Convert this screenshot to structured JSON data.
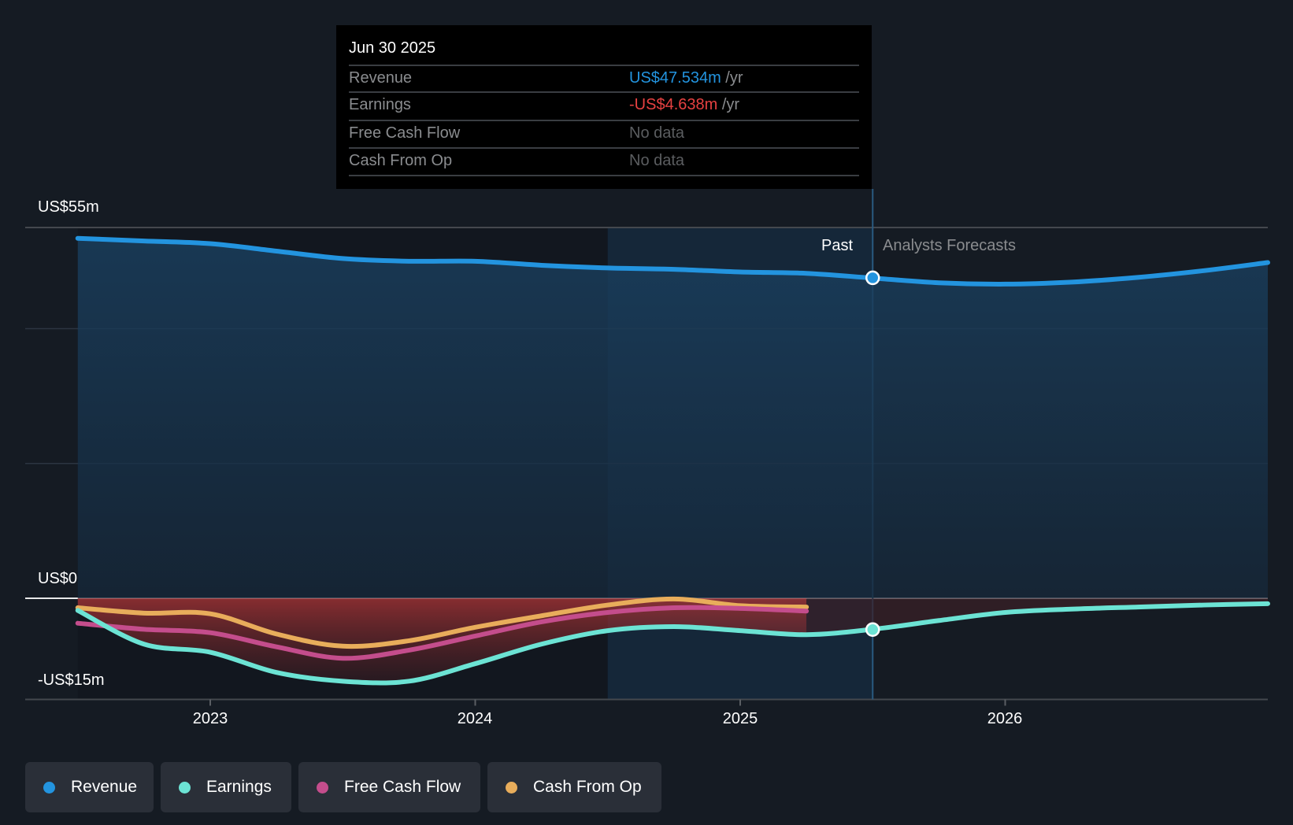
{
  "tooltip": {
    "date": "Jun 30 2025",
    "rows": [
      {
        "label": "Revenue",
        "value": "US$47.534m",
        "unit": " /yr",
        "color": "#2394df"
      },
      {
        "label": "Earnings",
        "value": "-US$4.638m",
        "unit": " /yr",
        "color": "#e64141"
      },
      {
        "label": "Free Cash Flow",
        "value": "No data",
        "unit": "",
        "color": "#5b5d60"
      },
      {
        "label": "Cash From Op",
        "value": "No data",
        "unit": "",
        "color": "#5b5d60"
      }
    ]
  },
  "labels": {
    "past": "Past",
    "forecast": "Analysts Forecasts"
  },
  "legend": [
    {
      "label": "Revenue",
      "color": "#2394df"
    },
    {
      "label": "Earnings",
      "color": "#6ce3d4"
    },
    {
      "label": "Free Cash Flow",
      "color": "#c44d8c"
    },
    {
      "label": "Cash From Op",
      "color": "#e8ad5b"
    }
  ],
  "chart_data": {
    "type": "line",
    "title": "",
    "xlabel": "",
    "ylabel": "",
    "ylim": [
      -15,
      55
    ],
    "xlim": [
      2022.3,
      2027.0
    ],
    "y_tick_labels": [
      {
        "value": 55,
        "label": "US$55m"
      },
      {
        "value": 0,
        "label": "US$0"
      },
      {
        "value": -15,
        "label": "-US$15m"
      }
    ],
    "x_ticks": [
      {
        "value": 2023,
        "label": "2023"
      },
      {
        "value": 2024,
        "label": "2024"
      },
      {
        "value": 2025,
        "label": "2025"
      },
      {
        "value": 2026,
        "label": "2026"
      }
    ],
    "past_end": 2025.5,
    "highlight_start": 2024.5,
    "grid": true,
    "series": [
      {
        "name": "Revenue",
        "color": "#2394df",
        "x": [
          2022.5,
          2022.75,
          2023.0,
          2023.25,
          2023.5,
          2023.75,
          2024.0,
          2024.25,
          2024.5,
          2024.75,
          2025.0,
          2025.25,
          2025.5,
          2025.75,
          2026.0,
          2026.25,
          2026.5,
          2026.75,
          2027.0
        ],
        "values": [
          53.4,
          53.0,
          52.6,
          51.5,
          50.4,
          50.0,
          50.0,
          49.4,
          49.0,
          48.8,
          48.4,
          48.2,
          47.5,
          46.8,
          46.6,
          46.9,
          47.6,
          48.6,
          49.8
        ],
        "forecast_from": 2025.5
      },
      {
        "name": "Earnings",
        "color": "#6ce3d4",
        "x": [
          2022.5,
          2022.75,
          2023.0,
          2023.25,
          2023.5,
          2023.75,
          2024.0,
          2024.25,
          2024.5,
          2024.75,
          2025.0,
          2025.25,
          2025.5,
          2025.75,
          2026.0,
          2026.25,
          2026.5,
          2026.75,
          2027.0
        ],
        "values": [
          -1.8,
          -6.8,
          -8.0,
          -11.0,
          -12.3,
          -12.3,
          -9.7,
          -6.8,
          -4.8,
          -4.2,
          -4.8,
          -5.4,
          -4.6,
          -3.3,
          -2.1,
          -1.6,
          -1.3,
          -1.0,
          -0.8
        ],
        "forecast_from": 2025.5
      },
      {
        "name": "Free Cash Flow",
        "color": "#c44d8c",
        "x": [
          2022.5,
          2022.75,
          2023.0,
          2023.25,
          2023.5,
          2023.75,
          2024.0,
          2024.25,
          2024.5,
          2024.75,
          2025.0,
          2025.25
        ],
        "values": [
          -3.7,
          -4.6,
          -5.1,
          -7.2,
          -8.9,
          -7.7,
          -5.6,
          -3.5,
          -2.1,
          -1.4,
          -1.5,
          -1.9
        ]
      },
      {
        "name": "Cash From Op",
        "color": "#e8ad5b",
        "x": [
          2022.5,
          2022.75,
          2023.0,
          2023.25,
          2023.5,
          2023.75,
          2024.0,
          2024.25,
          2024.5,
          2024.75,
          2025.0,
          2025.25
        ],
        "values": [
          -1.4,
          -2.2,
          -2.3,
          -5.3,
          -7.1,
          -6.3,
          -4.3,
          -2.6,
          -1.0,
          -0.1,
          -1.1,
          -1.3
        ]
      }
    ],
    "tooltip_markers": [
      {
        "series": "Revenue",
        "x": 2025.5,
        "value": 47.534
      },
      {
        "series": "Earnings",
        "x": 2025.5,
        "value": -4.638
      }
    ]
  }
}
